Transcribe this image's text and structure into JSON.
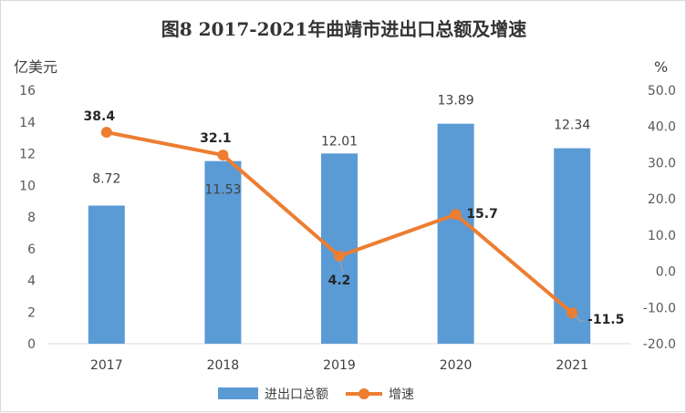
{
  "chart_data": {
    "type": "bar+line",
    "title": "图8  2017-2021年曲靖市进出口总额及增速",
    "categories": [
      "2017",
      "2018",
      "2019",
      "2020",
      "2021"
    ],
    "left_axis": {
      "unit": "亿美元",
      "ylim": [
        0,
        16
      ],
      "ticks": [
        "0",
        "2",
        "4",
        "6",
        "8",
        "10",
        "12",
        "14",
        "16"
      ]
    },
    "right_axis": {
      "unit": "%",
      "ylim": [
        -20,
        50
      ],
      "ticks": [
        "-20.0",
        "-10.0",
        "0.0",
        "10.0",
        "20.0",
        "30.0",
        "40.0",
        "50.0"
      ]
    },
    "series": [
      {
        "name": "进出口总额",
        "type": "bar",
        "axis": "left",
        "color": "#5b9bd5",
        "values": [
          8.72,
          11.53,
          12.01,
          13.89,
          12.34
        ],
        "labels": [
          "8.72",
          "11.53",
          "12.01",
          "13.89",
          "12.34"
        ]
      },
      {
        "name": "增速",
        "type": "line",
        "axis": "right",
        "color": "#ed7d31",
        "values": [
          38.4,
          32.1,
          4.2,
          15.7,
          -11.5
        ],
        "labels": [
          "38.4",
          "32.1",
          "4.2",
          "15.7",
          "-11.5"
        ]
      }
    ],
    "grid": false,
    "legend": "bottom"
  }
}
